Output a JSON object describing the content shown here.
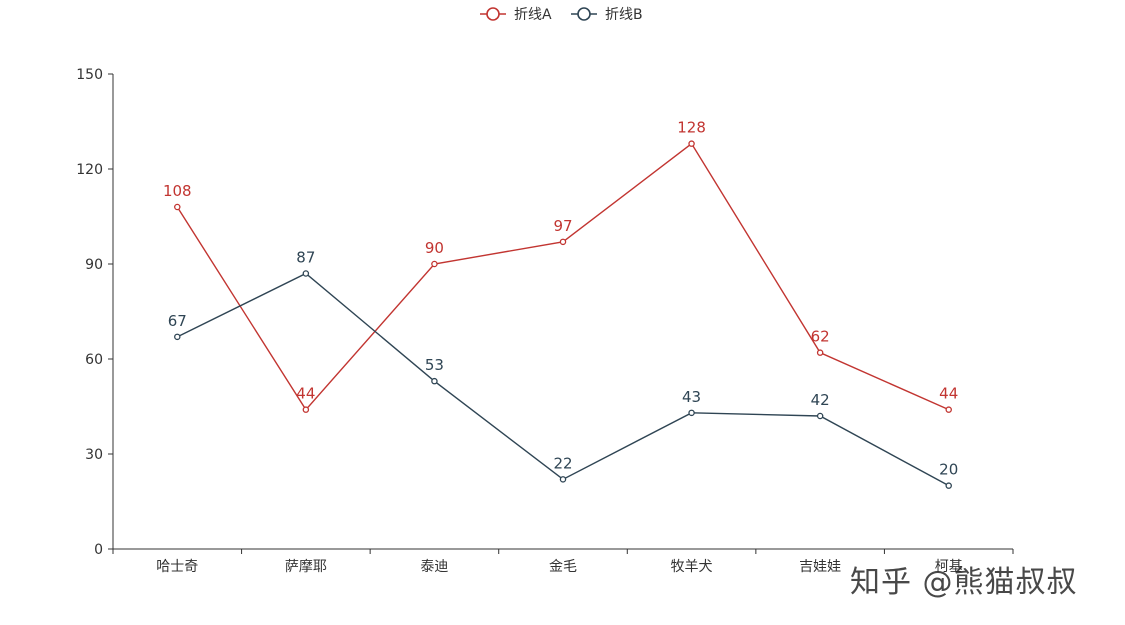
{
  "chart_data": {
    "type": "line",
    "categories": [
      "哈士奇",
      "萨摩耶",
      "泰迪",
      "金毛",
      "牧羊犬",
      "吉娃娃",
      "柯基"
    ],
    "series": [
      {
        "name": "折线A",
        "color": "#c23531",
        "values": [
          108,
          44,
          90,
          97,
          128,
          62,
          44
        ]
      },
      {
        "name": "折线B",
        "color": "#2f4554",
        "values": [
          67,
          87,
          53,
          22,
          43,
          42,
          20
        ]
      }
    ],
    "ylim": [
      0,
      150
    ],
    "yticks": [
      0,
      30,
      60,
      90,
      120,
      150
    ],
    "legend_position": "top-center",
    "grid": false
  },
  "watermark": "知乎 @熊猫叔叔"
}
